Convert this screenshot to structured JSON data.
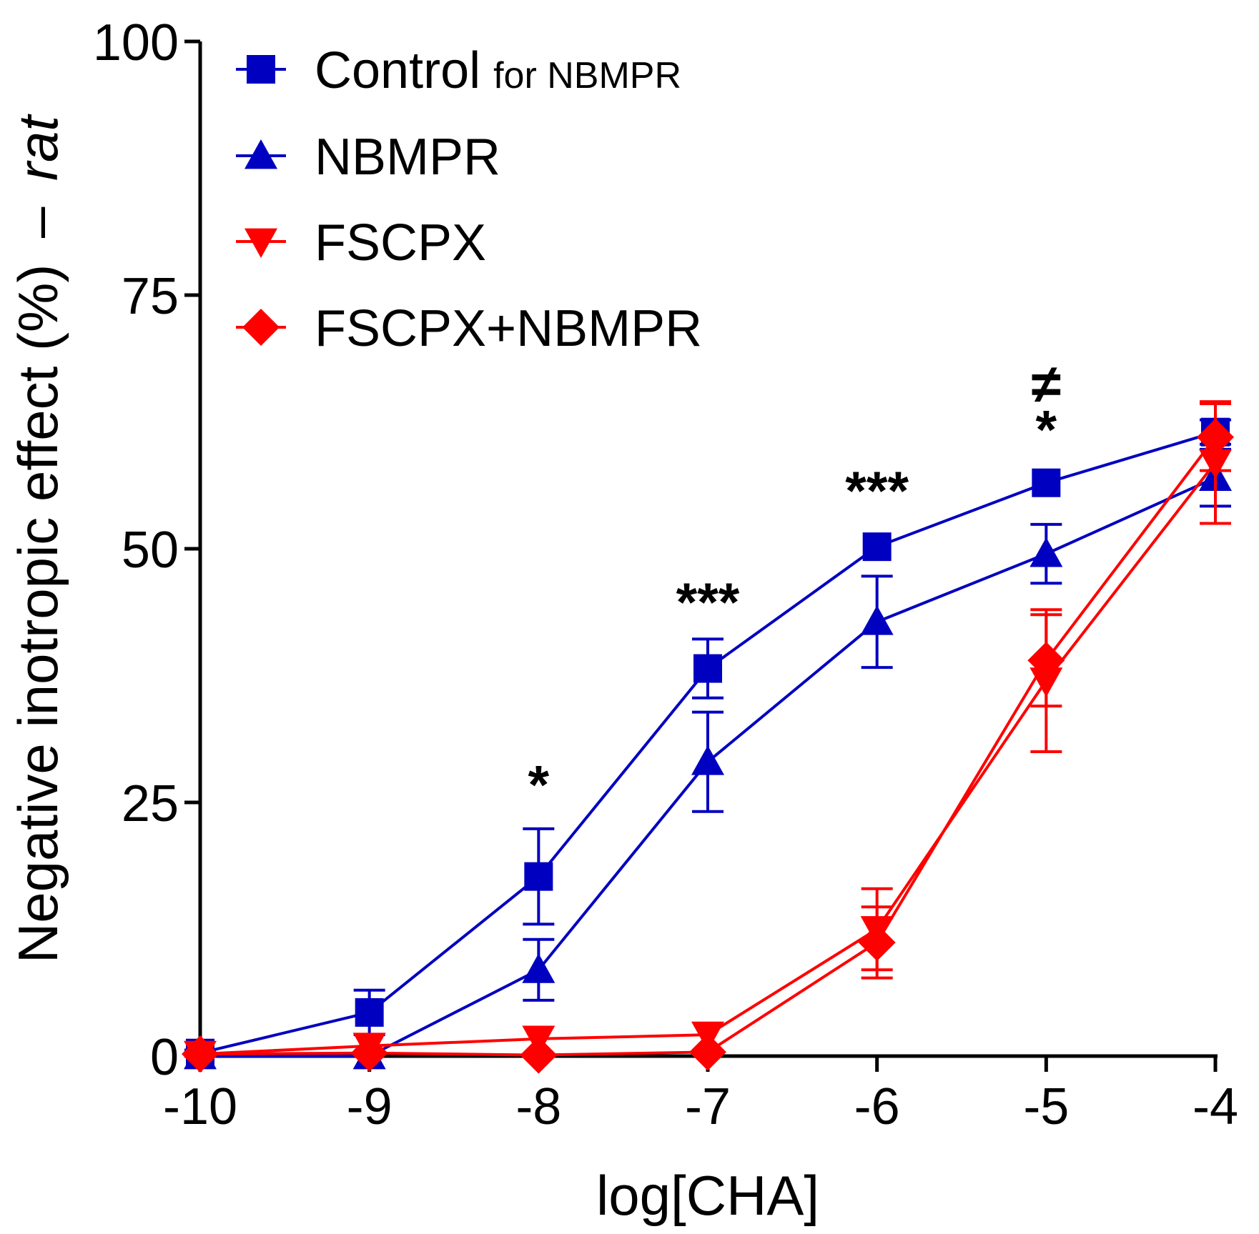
{
  "chart_data": {
    "type": "line",
    "title": "",
    "xlabel": "log[CHA]",
    "ylabel": "Negative inotropic effect (%)",
    "ylabel_suffix": "rat",
    "ylabel_dash": "–",
    "xlim": [
      -10,
      -4
    ],
    "ylim": [
      0,
      100
    ],
    "x": [
      -10,
      -9,
      -8,
      -7,
      -6,
      -5,
      -4
    ],
    "xtick_labels": [
      "-10",
      "-9",
      "-8",
      "-7",
      "-6",
      "-5",
      "-4"
    ],
    "yticks": [
      0,
      25,
      50,
      75,
      100
    ],
    "ytick_labels": [
      "0",
      "25",
      "50",
      "75",
      "100"
    ],
    "legend_position": "top-left",
    "series": [
      {
        "name": "Control",
        "name_suffix": "for NBMPR",
        "color": "#0000c0",
        "marker": "square",
        "values": [
          0.3,
          4.3,
          17.7,
          38.2,
          50.2,
          56.5,
          61.5
        ],
        "errors": [
          0.3,
          2.2,
          4.7,
          2.9,
          0,
          0,
          1.2
        ]
      },
      {
        "name": "NBMPR",
        "color": "#0000c0",
        "marker": "triangle-up",
        "values": [
          0,
          0,
          8.5,
          29.0,
          42.8,
          49.5,
          57.0
        ],
        "errors": [
          0,
          0,
          3.0,
          4.9,
          4.5,
          2.9,
          2.8
        ]
      },
      {
        "name": "FSCPX",
        "color": "#ff0000",
        "marker": "triangle-down",
        "values": [
          0.2,
          1.0,
          1.7,
          2.1,
          12.5,
          37.0,
          58.5
        ],
        "errors": [
          0,
          0,
          0,
          0,
          4.0,
          7.0,
          6.0
        ]
      },
      {
        "name": "FSCPX+NBMPR",
        "color": "#ff0000",
        "marker": "diamond",
        "values": [
          0.2,
          0.3,
          0.1,
          0.4,
          11.2,
          39.0,
          61.0
        ],
        "errors": [
          0,
          0,
          0,
          0,
          3.5,
          4.5,
          3.3
        ]
      }
    ],
    "annotations": [
      {
        "x": -8,
        "y": 27,
        "text": "*"
      },
      {
        "x": -7,
        "y": 45,
        "text": "***"
      },
      {
        "x": -6,
        "y": 56,
        "text": "***"
      },
      {
        "x": -5,
        "y": 62,
        "text": "*"
      },
      {
        "x": -5,
        "y": 66.5,
        "text": "≠"
      }
    ]
  }
}
